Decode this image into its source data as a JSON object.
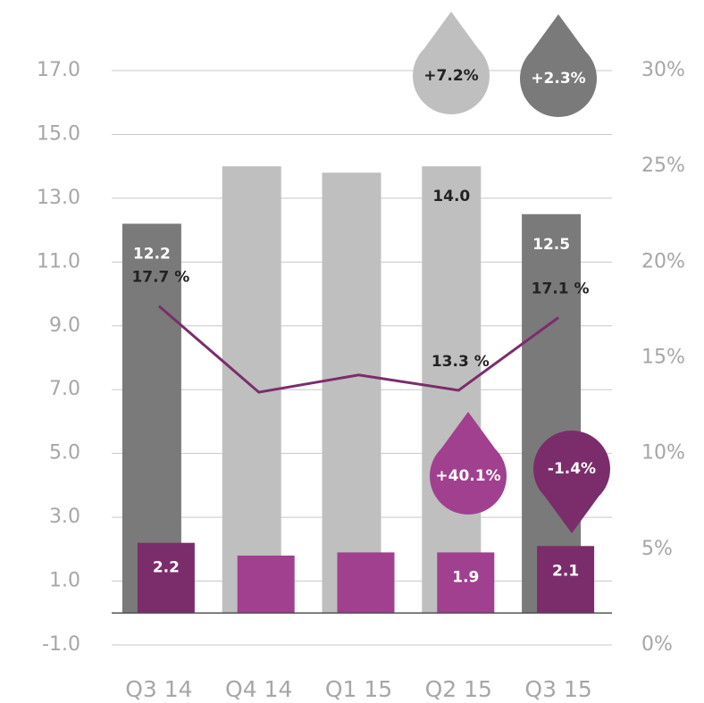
{
  "chart_data": {
    "type": "bar-line",
    "categories": [
      "Q3 14",
      "Q4 14",
      "Q1 15",
      "Q2 15",
      "Q3 15"
    ],
    "series": [
      {
        "type": "bar",
        "colors": [
          "#7a7a7a",
          "#bfbfbf",
          "#bfbfbf",
          "#bfbfbf",
          "#7a7a7a"
        ],
        "values": [
          12.2,
          14.0,
          13.8,
          14.0,
          12.5
        ],
        "value_labels": [
          "12.2",
          null,
          null,
          "14.0",
          "12.5"
        ]
      },
      {
        "type": "bar",
        "colors": [
          "#7b2d6b",
          "#a0408f",
          "#a0408f",
          "#a0408f",
          "#7b2d6b"
        ],
        "values": [
          2.2,
          1.8,
          1.9,
          1.9,
          2.1
        ],
        "value_labels": [
          "2.2",
          null,
          null,
          "1.9",
          "2.1"
        ]
      },
      {
        "type": "line",
        "axis": "y2",
        "color": "#7b2d6b",
        "values": [
          17.7,
          13.2,
          14.1,
          13.3,
          17.1
        ],
        "value_labels": [
          "17.7 %",
          null,
          null,
          "13.3 %",
          "17.1 %"
        ]
      }
    ],
    "ylim": [
      -1,
      17
    ],
    "yticks": [
      {
        "value": -1,
        "label": "-1.0"
      },
      {
        "value": 1,
        "label": "1.0"
      },
      {
        "value": 3,
        "label": "3.0"
      },
      {
        "value": 5,
        "label": "5.0"
      },
      {
        "value": 7,
        "label": "7.0"
      },
      {
        "value": 9,
        "label": "9.0"
      },
      {
        "value": 11,
        "label": "11.0"
      },
      {
        "value": 13,
        "label": "13.0"
      },
      {
        "value": 15,
        "label": "15.0"
      },
      {
        "value": 17,
        "label": "17.0"
      }
    ],
    "y2lim": [
      0,
      30
    ],
    "y2ticks": [
      {
        "value": 0,
        "label": "0%"
      },
      {
        "value": 5,
        "label": "5%"
      },
      {
        "value": 10,
        "label": "10%"
      },
      {
        "value": 15,
        "label": "15%"
      },
      {
        "value": 20,
        "label": "20%"
      },
      {
        "value": 25,
        "label": "25%"
      },
      {
        "value": 30,
        "label": "30%"
      }
    ],
    "grid": true,
    "annotations": [
      {
        "text": "+7.2%",
        "color": "#bfbfbf"
      },
      {
        "text": "+2.3%",
        "color": "#7a7a7a"
      },
      {
        "text": "+40.1%",
        "color": "#a0408f"
      },
      {
        "text": "-1.4%",
        "color": "#7b2d6b"
      }
    ]
  }
}
